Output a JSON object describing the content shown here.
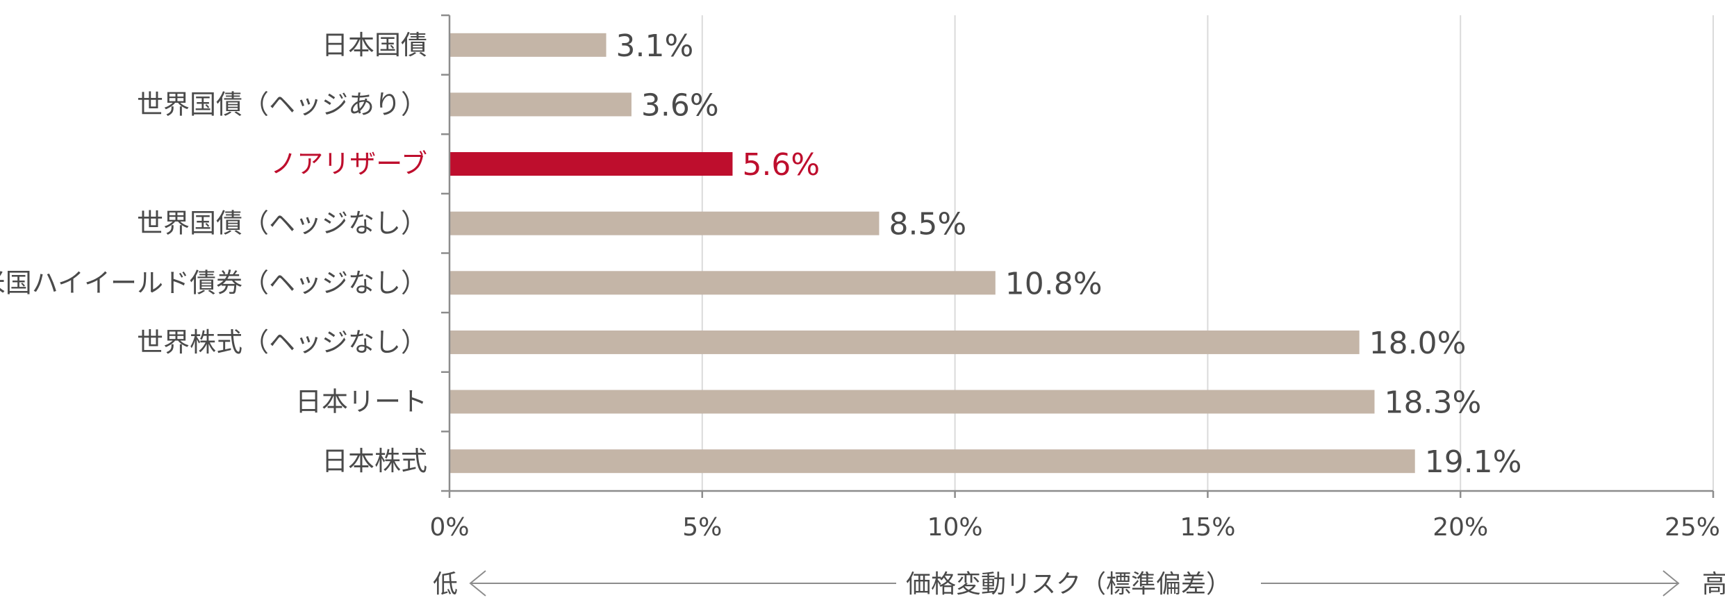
{
  "chart_data": {
    "type": "bar",
    "orientation": "horizontal",
    "categories": [
      "日本国債",
      "世界国債（ヘッジあり）",
      "ノアリザーブ",
      "世界国債（ヘッジなし）",
      "米国ハイイールド債券（ヘッジなし）",
      "世界株式（ヘッジなし）",
      "日本リート",
      "日本株式"
    ],
    "values": [
      3.1,
      3.6,
      5.6,
      8.5,
      10.8,
      18.0,
      18.3,
      19.1
    ],
    "value_labels": [
      "3.1%",
      "3.6%",
      "5.6%",
      "8.5%",
      "10.8%",
      "18.0%",
      "18.3%",
      "19.1%"
    ],
    "highlight_index": 2,
    "xlim": [
      0,
      25
    ],
    "xticks": [
      0,
      5,
      10,
      15,
      20,
      25
    ],
    "xtick_labels": [
      "0%",
      "5%",
      "10%",
      "15%",
      "20%",
      "25%"
    ],
    "xlabel": "価格変動リスク（標準偏差）",
    "xlabel_low": "低",
    "xlabel_high": "高",
    "grid": "vertical",
    "colors": {
      "bar": "#c4b5a7",
      "highlight": "#be0e2d",
      "text": "#4a4a4a",
      "grid": "#dadada",
      "axis": "#8c8c8c"
    }
  }
}
